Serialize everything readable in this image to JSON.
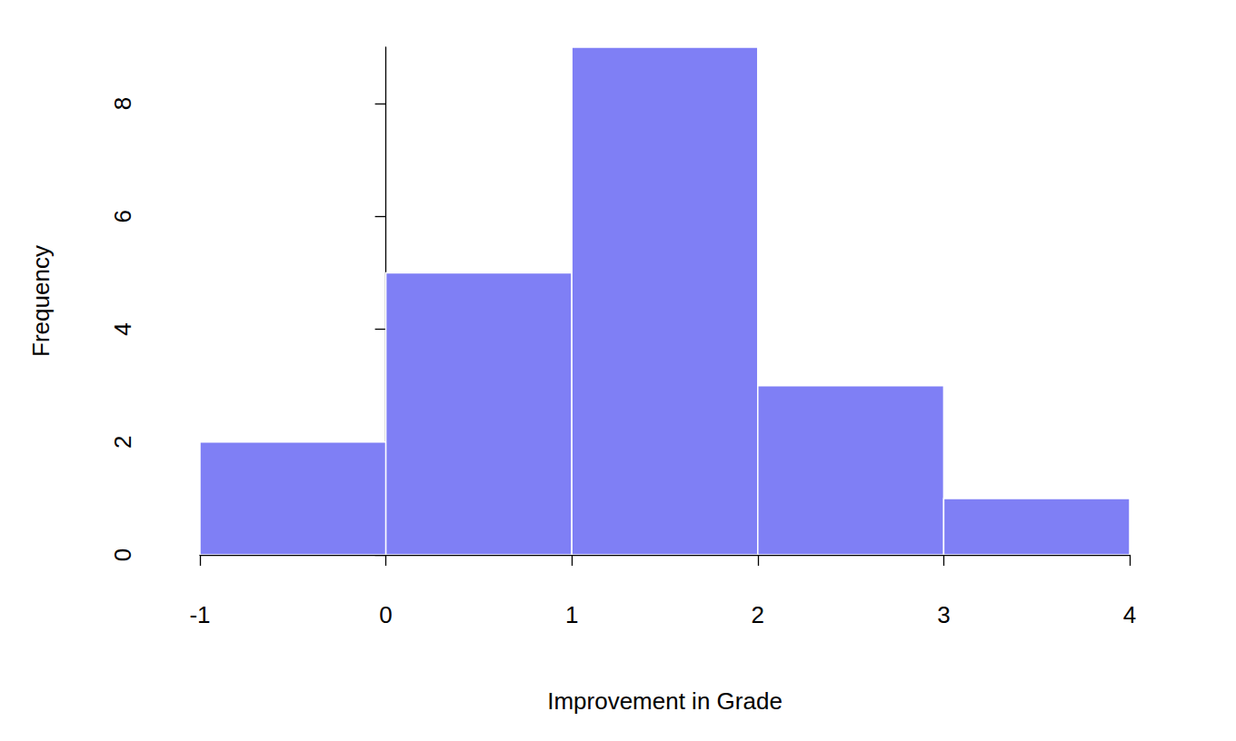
{
  "chart_data": {
    "type": "histogram",
    "bins": [
      -1,
      0,
      1,
      2,
      3,
      4
    ],
    "values": [
      2,
      5,
      9,
      3,
      1
    ],
    "color": "#7f7ff5",
    "xlabel": "Improvement in Grade",
    "ylabel": "Frequency",
    "xlim": [
      -1,
      4
    ],
    "xticks": [
      -1,
      0,
      1,
      2,
      3,
      4
    ],
    "ylim": [
      0,
      9
    ],
    "yticks": [
      0,
      2,
      4,
      6,
      8
    ],
    "grid": false
  }
}
